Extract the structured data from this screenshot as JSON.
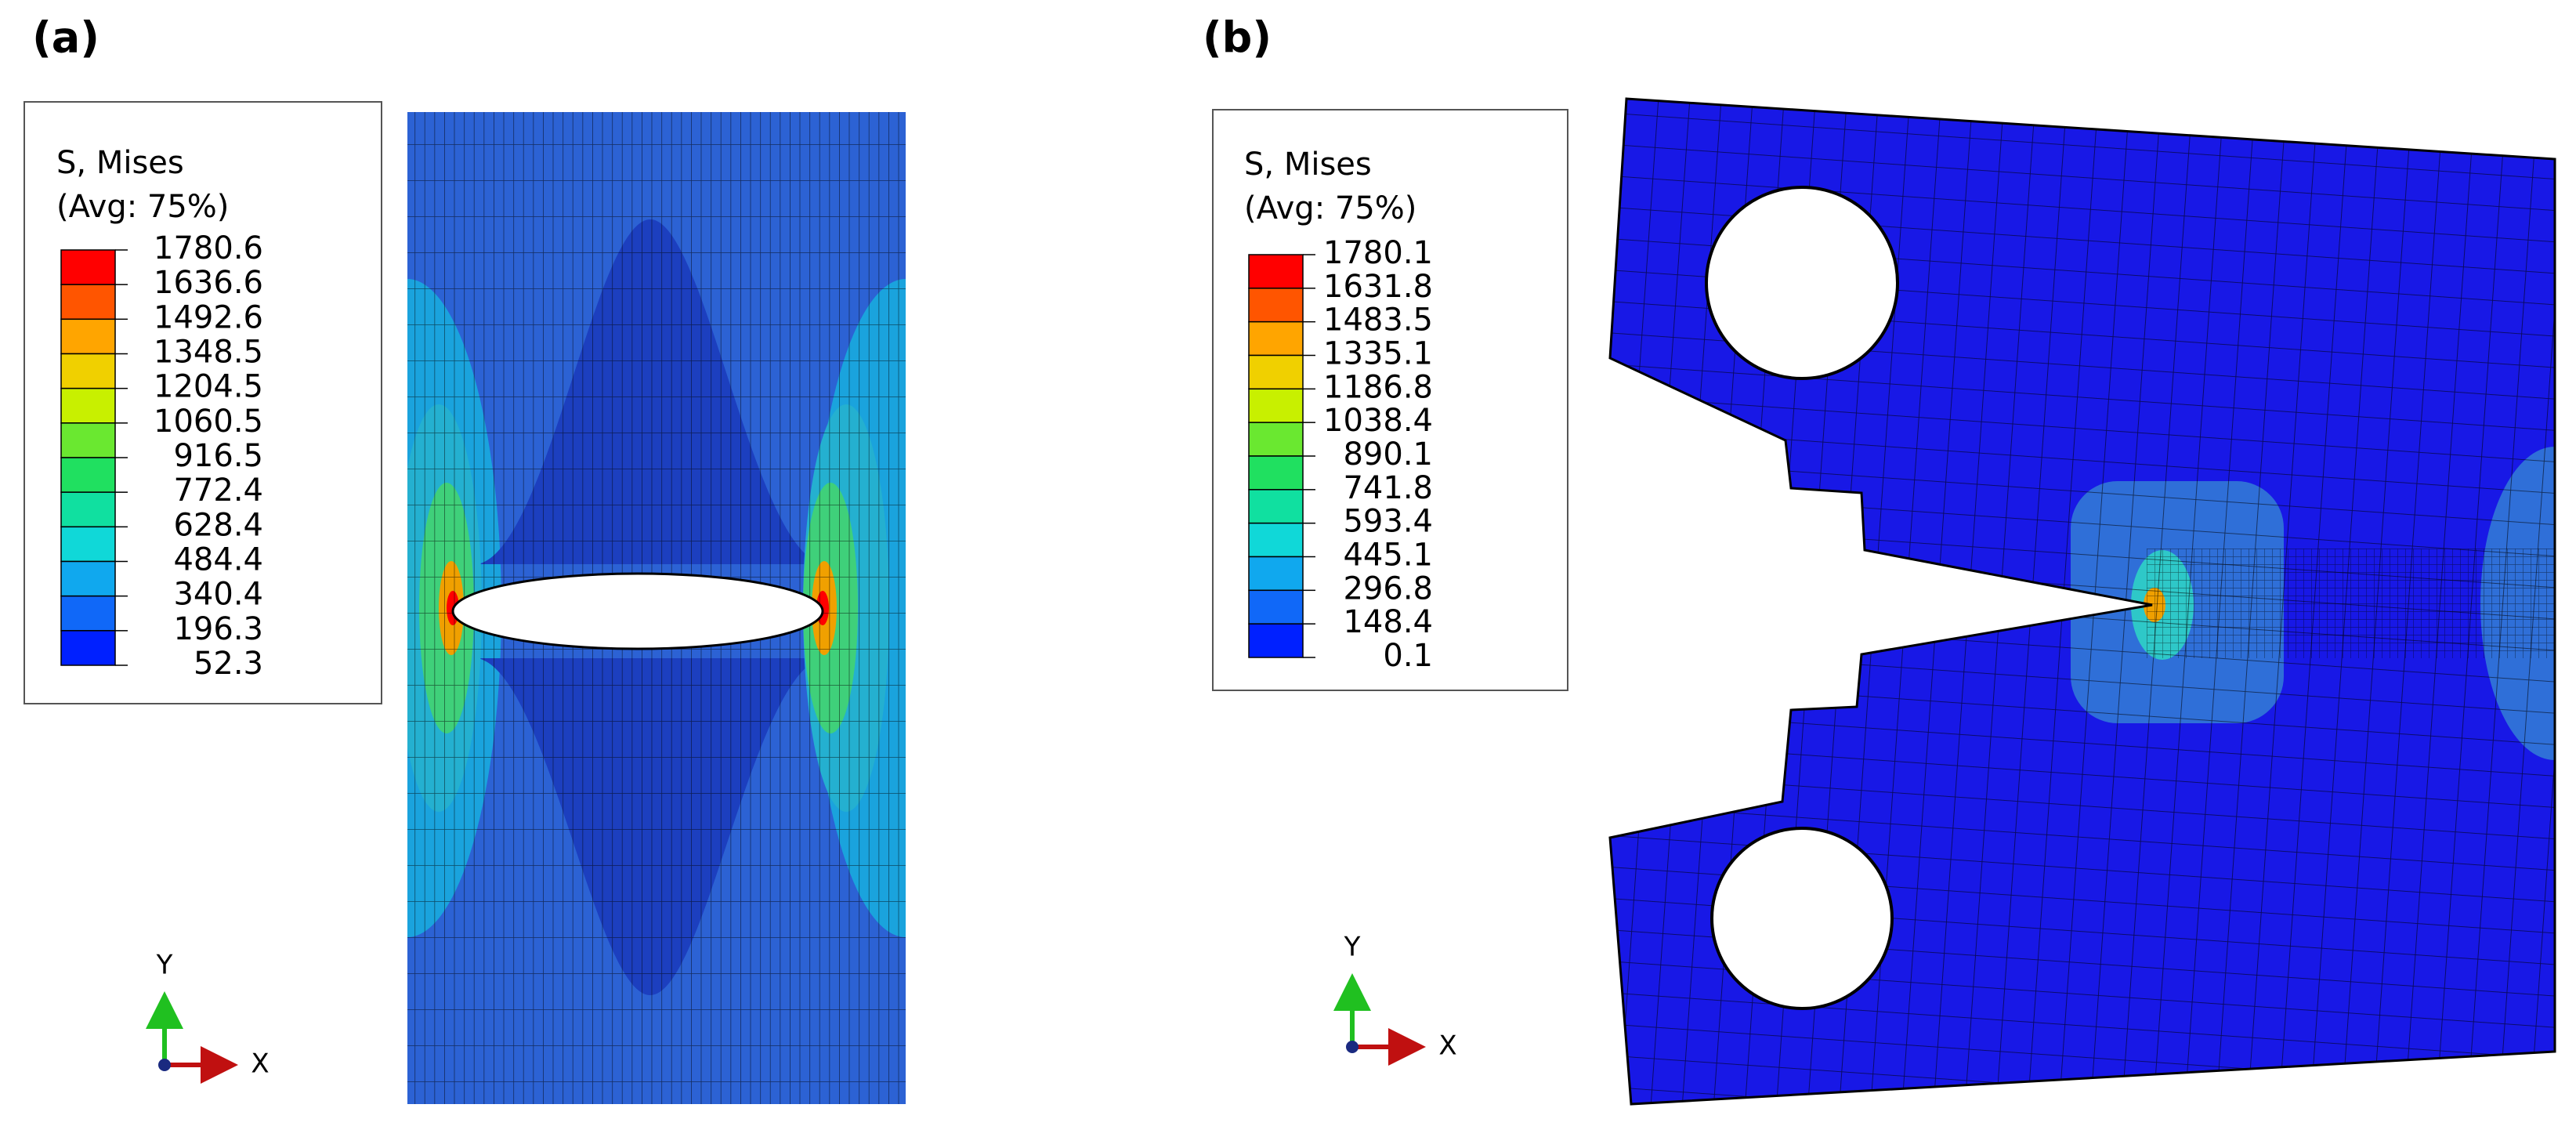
{
  "panels": [
    {
      "label": "(a)",
      "legend": {
        "title": [
          "S, Mises",
          "(Avg: 75%)"
        ],
        "values": [
          1780.6,
          1636.6,
          1492.6,
          1348.5,
          1204.5,
          1060.5,
          916.5,
          772.4,
          628.4,
          484.4,
          340.4,
          196.3,
          52.3
        ],
        "colors": [
          "#ff0000",
          "#ff5500",
          "#ffa500",
          "#f0d000",
          "#c8f000",
          "#6ae830",
          "#20e060",
          "#10e0a0",
          "#10d8d8",
          "#10a8ee",
          "#1068f8",
          "#0020ff"
        ]
      },
      "triad": {
        "y": "Y",
        "x": "X"
      }
    },
    {
      "label": "(b)",
      "legend": {
        "title": [
          "S, Mises",
          "(Avg: 75%)"
        ],
        "values": [
          1780.1,
          1631.8,
          1483.5,
          1335.1,
          1186.8,
          1038.4,
          890.1,
          741.8,
          593.4,
          445.1,
          296.8,
          148.4,
          0.1
        ],
        "colors": [
          "#ff0000",
          "#ff5500",
          "#ffa500",
          "#f0d000",
          "#c8f000",
          "#6ae830",
          "#20e060",
          "#10e0a0",
          "#10d8d8",
          "#10a8ee",
          "#1068f8",
          "#0020ff"
        ]
      },
      "triad": {
        "y": "Y",
        "x": "X"
      }
    }
  ]
}
